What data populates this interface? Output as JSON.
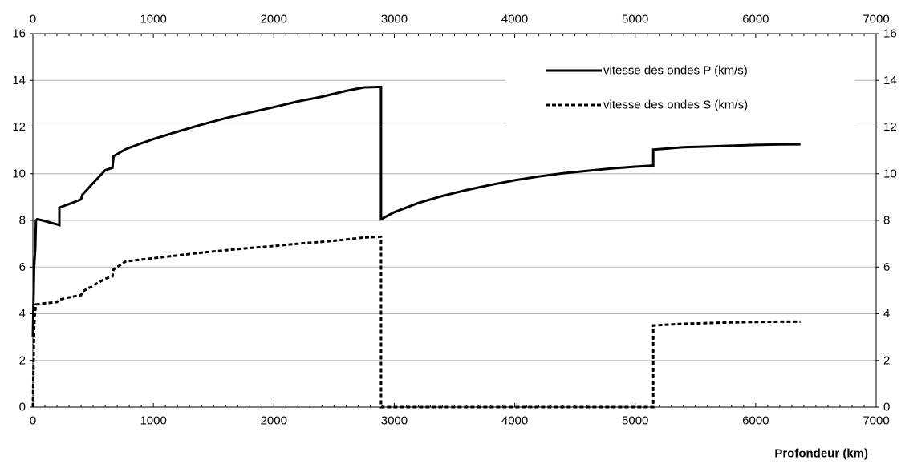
{
  "chart_data": {
    "type": "line",
    "xlabel": "Profondeur (km)",
    "ylabel": "",
    "xlim": [
      0,
      7000
    ],
    "ylim": [
      0,
      16
    ],
    "x_ticks": [
      0,
      1000,
      2000,
      3000,
      4000,
      5000,
      6000,
      7000
    ],
    "y_ticks": [
      0,
      2,
      4,
      6,
      8,
      10,
      12,
      14,
      16
    ],
    "x_tick_labels": [
      "0",
      "1000",
      "2000",
      "3000",
      "4000",
      "5000",
      "6000",
      "7000"
    ],
    "y_tick_labels": [
      "0",
      "2",
      "4",
      "6",
      "8",
      "10",
      "12",
      "14",
      "16"
    ],
    "grid": "horizontal",
    "legend_position": "top-right",
    "series": [
      {
        "name": "vitesse des ondes P (km/s)",
        "style": "solid",
        "color": "#000000",
        "points": [
          [
            0,
            3.0
          ],
          [
            10,
            6.0
          ],
          [
            20,
            6.8
          ],
          [
            25,
            8.0
          ],
          [
            35,
            8.05
          ],
          [
            80,
            8.0
          ],
          [
            150,
            7.9
          ],
          [
            220,
            7.8
          ],
          [
            220,
            8.55
          ],
          [
            300,
            8.7
          ],
          [
            400,
            8.9
          ],
          [
            410,
            9.1
          ],
          [
            500,
            9.6
          ],
          [
            600,
            10.15
          ],
          [
            660,
            10.25
          ],
          [
            670,
            10.75
          ],
          [
            770,
            11.05
          ],
          [
            900,
            11.3
          ],
          [
            1000,
            11.48
          ],
          [
            1200,
            11.8
          ],
          [
            1400,
            12.1
          ],
          [
            1600,
            12.38
          ],
          [
            1800,
            12.62
          ],
          [
            2000,
            12.85
          ],
          [
            2200,
            13.1
          ],
          [
            2400,
            13.3
          ],
          [
            2600,
            13.55
          ],
          [
            2750,
            13.7
          ],
          [
            2890,
            13.72
          ],
          [
            2890,
            8.05
          ],
          [
            3000,
            8.35
          ],
          [
            3200,
            8.75
          ],
          [
            3400,
            9.05
          ],
          [
            3600,
            9.3
          ],
          [
            3800,
            9.52
          ],
          [
            4000,
            9.72
          ],
          [
            4200,
            9.88
          ],
          [
            4400,
            10.02
          ],
          [
            4600,
            10.12
          ],
          [
            4800,
            10.22
          ],
          [
            5000,
            10.3
          ],
          [
            5150,
            10.35
          ],
          [
            5150,
            11.03
          ],
          [
            5400,
            11.13
          ],
          [
            5700,
            11.18
          ],
          [
            6000,
            11.23
          ],
          [
            6200,
            11.25
          ],
          [
            6371,
            11.26
          ]
        ]
      },
      {
        "name": "vitesse des ondes S (km/s)",
        "style": "dashed",
        "color": "#000000",
        "points": [
          [
            0,
            0.0
          ],
          [
            5,
            1.8
          ],
          [
            10,
            3.3
          ],
          [
            15,
            3.9
          ],
          [
            25,
            4.4
          ],
          [
            100,
            4.45
          ],
          [
            200,
            4.5
          ],
          [
            220,
            4.6
          ],
          [
            300,
            4.7
          ],
          [
            400,
            4.8
          ],
          [
            410,
            4.95
          ],
          [
            500,
            5.2
          ],
          [
            600,
            5.5
          ],
          [
            660,
            5.6
          ],
          [
            670,
            5.9
          ],
          [
            770,
            6.24
          ],
          [
            900,
            6.32
          ],
          [
            1000,
            6.38
          ],
          [
            1200,
            6.5
          ],
          [
            1400,
            6.62
          ],
          [
            1600,
            6.72
          ],
          [
            1800,
            6.82
          ],
          [
            2000,
            6.9
          ],
          [
            2200,
            7.0
          ],
          [
            2400,
            7.08
          ],
          [
            2600,
            7.18
          ],
          [
            2750,
            7.27
          ],
          [
            2890,
            7.3
          ],
          [
            2890,
            0.0
          ],
          [
            3500,
            0.0
          ],
          [
            4000,
            0.0
          ],
          [
            4500,
            0.0
          ],
          [
            5150,
            0.0
          ],
          [
            5150,
            3.5
          ],
          [
            5400,
            3.57
          ],
          [
            5700,
            3.62
          ],
          [
            6000,
            3.65
          ],
          [
            6200,
            3.66
          ],
          [
            6371,
            3.66
          ]
        ]
      }
    ]
  }
}
